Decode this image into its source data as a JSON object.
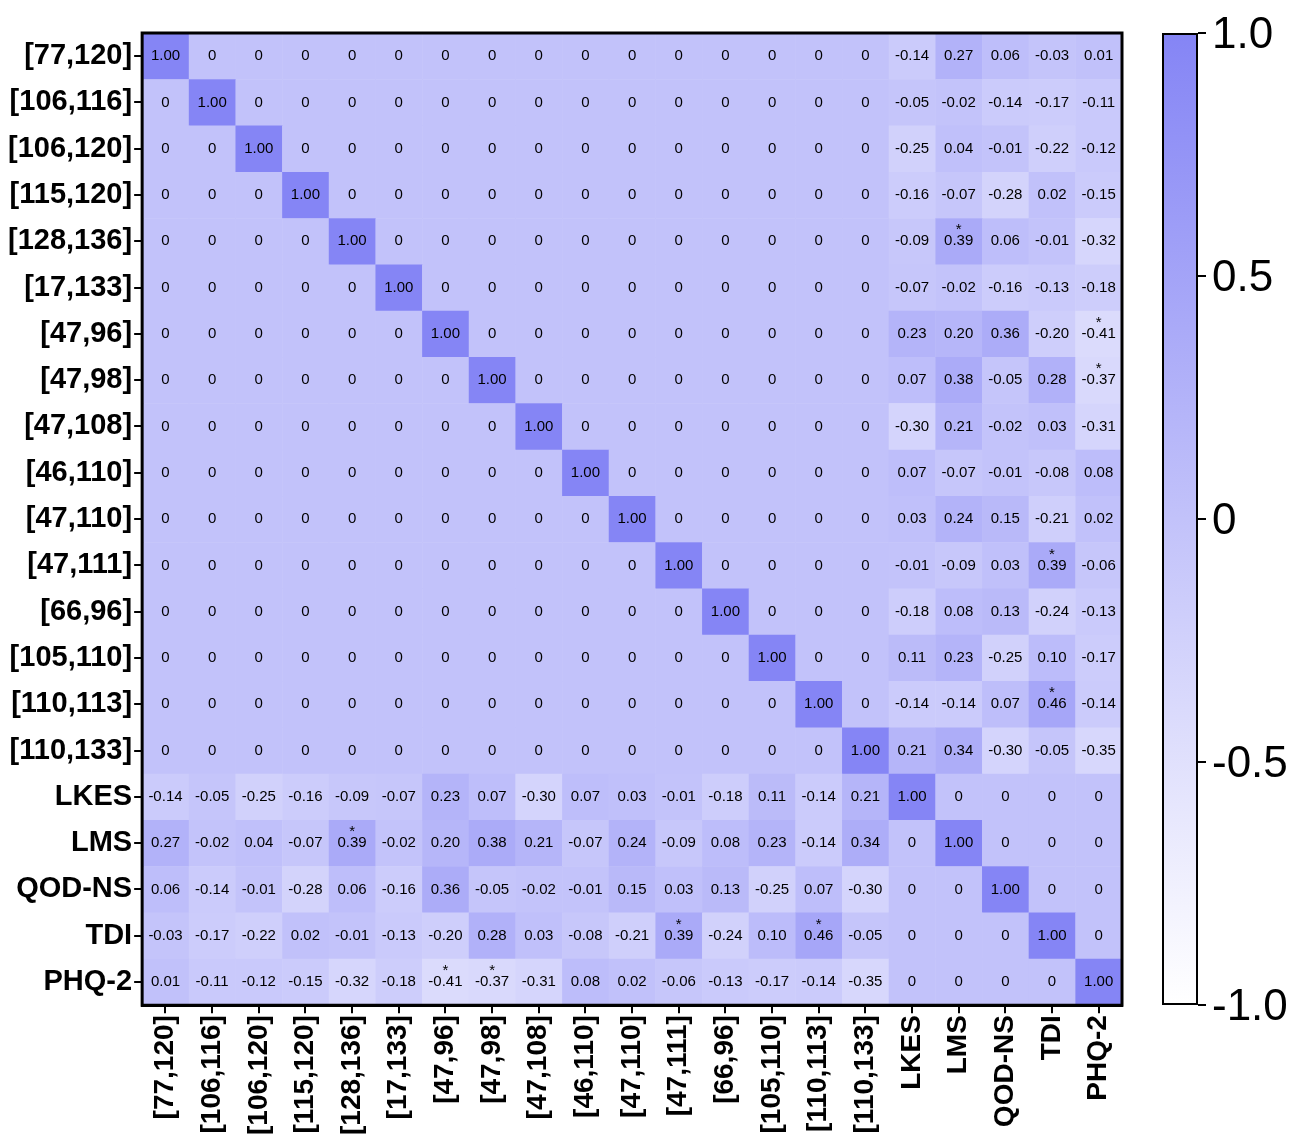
{
  "chart_data": {
    "type": "heatmap",
    "categories": [
      "[77,120]",
      "[106,116]",
      "[106,120]",
      "[115,120]",
      "[128,136]",
      "[17,133]",
      "[47,96]",
      "[47,98]",
      "[47,108]",
      "[46,110]",
      "[47,110]",
      "[47,111]",
      "[66,96]",
      "[105,110]",
      "[110,113]",
      "[110,133]",
      "LKES",
      "LMS",
      "QOD-NS",
      "TDI",
      "PHQ-2"
    ],
    "y_categories": [
      "[77,120]",
      "[106,116]",
      "[106,120]",
      "[115,120]",
      "[128,136]",
      "[17,133]",
      "[47,96]",
      "[47,98]",
      "[47,108]",
      "[46,110]",
      "[47,110]",
      "[47,111]",
      "[66,96]",
      "[105,110]",
      "[110,113]",
      "[110,133]",
      "LKES",
      "LMS",
      "QOD-NS",
      "TDI",
      "PHQ-2"
    ],
    "cells": [
      [
        1,
        0,
        0,
        0,
        0,
        0,
        0,
        0,
        0,
        0,
        0,
        0,
        0,
        0,
        0,
        0,
        -0.14,
        0.27,
        0.06,
        -0.03,
        0.01
      ],
      [
        0,
        1,
        0,
        0,
        0,
        0,
        0,
        0,
        0,
        0,
        0,
        0,
        0,
        0,
        0,
        0,
        -0.05,
        -0.02,
        -0.14,
        -0.17,
        -0.11
      ],
      [
        0,
        0,
        1,
        0,
        0,
        0,
        0,
        0,
        0,
        0,
        0,
        0,
        0,
        0,
        0,
        0,
        -0.25,
        0.04,
        -0.01,
        -0.22,
        -0.12
      ],
      [
        0,
        0,
        0,
        1,
        0,
        0,
        0,
        0,
        0,
        0,
        0,
        0,
        0,
        0,
        0,
        0,
        -0.16,
        -0.07,
        -0.28,
        0.02,
        -0.15
      ],
      [
        0,
        0,
        0,
        0,
        1,
        0,
        0,
        0,
        0,
        0,
        0,
        0,
        0,
        0,
        0,
        0,
        -0.09,
        0.39,
        0.06,
        -0.01,
        -0.32
      ],
      [
        0,
        0,
        0,
        0,
        0,
        1,
        0,
        0,
        0,
        0,
        0,
        0,
        0,
        0,
        0,
        0,
        -0.07,
        -0.02,
        -0.16,
        -0.13,
        -0.18
      ],
      [
        0,
        0,
        0,
        0,
        0,
        0,
        1,
        0,
        0,
        0,
        0,
        0,
        0,
        0,
        0,
        0,
        0.23,
        0.2,
        0.36,
        -0.2,
        -0.41
      ],
      [
        0,
        0,
        0,
        0,
        0,
        0,
        0,
        1,
        0,
        0,
        0,
        0,
        0,
        0,
        0,
        0,
        0.07,
        0.38,
        -0.05,
        0.28,
        -0.37
      ],
      [
        0,
        0,
        0,
        0,
        0,
        0,
        0,
        0,
        1,
        0,
        0,
        0,
        0,
        0,
        0,
        0,
        -0.3,
        0.21,
        -0.02,
        0.03,
        -0.31
      ],
      [
        0,
        0,
        0,
        0,
        0,
        0,
        0,
        0,
        0,
        1,
        0,
        0,
        0,
        0,
        0,
        0,
        0.07,
        -0.07,
        -0.01,
        -0.08,
        0.08
      ],
      [
        0,
        0,
        0,
        0,
        0,
        0,
        0,
        0,
        0,
        0,
        1,
        0,
        0,
        0,
        0,
        0,
        0.03,
        0.24,
        0.15,
        -0.21,
        0.02
      ],
      [
        0,
        0,
        0,
        0,
        0,
        0,
        0,
        0,
        0,
        0,
        0,
        1,
        0,
        0,
        0,
        0,
        -0.01,
        -0.09,
        0.03,
        0.39,
        -0.06
      ],
      [
        0,
        0,
        0,
        0,
        0,
        0,
        0,
        0,
        0,
        0,
        0,
        0,
        1,
        0,
        0,
        0,
        -0.18,
        0.08,
        0.13,
        -0.24,
        -0.13
      ],
      [
        0,
        0,
        0,
        0,
        0,
        0,
        0,
        0,
        0,
        0,
        0,
        0,
        0,
        1,
        0,
        0,
        0.11,
        0.23,
        -0.25,
        0.1,
        -0.17
      ],
      [
        0,
        0,
        0,
        0,
        0,
        0,
        0,
        0,
        0,
        0,
        0,
        0,
        0,
        0,
        1,
        0,
        -0.14,
        -0.14,
        0.07,
        0.46,
        -0.14
      ],
      [
        0,
        0,
        0,
        0,
        0,
        0,
        0,
        0,
        0,
        0,
        0,
        0,
        0,
        0,
        0,
        1,
        0.21,
        0.34,
        -0.3,
        -0.05,
        -0.35
      ],
      [
        -0.14,
        -0.05,
        -0.25,
        -0.16,
        -0.09,
        -0.07,
        0.23,
        0.07,
        -0.3,
        0.07,
        0.03,
        -0.01,
        -0.18,
        0.11,
        -0.14,
        0.21,
        1,
        0,
        0,
        0,
        0
      ],
      [
        0.27,
        -0.02,
        0.04,
        -0.07,
        0.39,
        -0.02,
        0.2,
        0.38,
        0.21,
        -0.07,
        0.24,
        -0.09,
        0.08,
        0.23,
        -0.14,
        0.34,
        0,
        1,
        0,
        0,
        0
      ],
      [
        0.06,
        -0.14,
        -0.01,
        -0.28,
        0.06,
        -0.16,
        0.36,
        -0.05,
        -0.02,
        -0.01,
        0.15,
        0.03,
        0.13,
        -0.25,
        0.07,
        -0.3,
        0,
        0,
        1,
        0,
        0
      ],
      [
        -0.03,
        -0.17,
        -0.22,
        0.02,
        -0.01,
        -0.13,
        -0.2,
        0.28,
        0.03,
        -0.08,
        -0.21,
        0.39,
        -0.24,
        0.1,
        0.46,
        -0.05,
        0,
        0,
        0,
        1,
        0
      ],
      [
        0.01,
        -0.11,
        -0.12,
        -0.15,
        -0.32,
        -0.18,
        -0.41,
        -0.37,
        -0.31,
        0.08,
        0.02,
        -0.06,
        -0.13,
        -0.17,
        -0.14,
        -0.35,
        0,
        0,
        0,
        0,
        1
      ]
    ],
    "cell_labels": [
      [
        "1.00",
        "0",
        "0",
        "0",
        "0",
        "0",
        "0",
        "0",
        "0",
        "0",
        "0",
        "0",
        "0",
        "0",
        "0",
        "0",
        "-0.14",
        "0.27",
        "0.06",
        "-0.03",
        "0.01"
      ],
      [
        "0",
        "1.00",
        "0",
        "0",
        "0",
        "0",
        "0",
        "0",
        "0",
        "0",
        "0",
        "0",
        "0",
        "0",
        "0",
        "0",
        "-0.05",
        "-0.02",
        "-0.14",
        "-0.17",
        "-0.11"
      ],
      [
        "0",
        "0",
        "1.00",
        "0",
        "0",
        "0",
        "0",
        "0",
        "0",
        "0",
        "0",
        "0",
        "0",
        "0",
        "0",
        "0",
        "-0.25",
        "0.04",
        "-0.01",
        "-0.22",
        "-0.12"
      ],
      [
        "0",
        "0",
        "0",
        "1.00",
        "0",
        "0",
        "0",
        "0",
        "0",
        "0",
        "0",
        "0",
        "0",
        "0",
        "0",
        "0",
        "-0.16",
        "-0.07",
        "-0.28",
        "0.02",
        "-0.15"
      ],
      [
        "0",
        "0",
        "0",
        "0",
        "1.00",
        "0",
        "0",
        "0",
        "0",
        "0",
        "0",
        "0",
        "0",
        "0",
        "0",
        "0",
        "-0.09",
        "*\n0.39",
        "0.06",
        "-0.01",
        "-0.32"
      ],
      [
        "0",
        "0",
        "0",
        "0",
        "0",
        "1.00",
        "0",
        "0",
        "0",
        "0",
        "0",
        "0",
        "0",
        "0",
        "0",
        "0",
        "-0.07",
        "-0.02",
        "-0.16",
        "-0.13",
        "-0.18"
      ],
      [
        "0",
        "0",
        "0",
        "0",
        "0",
        "0",
        "1.00",
        "0",
        "0",
        "0",
        "0",
        "0",
        "0",
        "0",
        "0",
        "0",
        "0.23",
        "0.20",
        "0.36",
        "-0.20",
        "*\n-0.41"
      ],
      [
        "0",
        "0",
        "0",
        "0",
        "0",
        "0",
        "0",
        "1.00",
        "0",
        "0",
        "0",
        "0",
        "0",
        "0",
        "0",
        "0",
        "0.07",
        "0.38",
        "-0.05",
        "0.28",
        "*\n-0.37"
      ],
      [
        "0",
        "0",
        "0",
        "0",
        "0",
        "0",
        "0",
        "0",
        "1.00",
        "0",
        "0",
        "0",
        "0",
        "0",
        "0",
        "0",
        "-0.30",
        "0.21",
        "-0.02",
        "0.03",
        "-0.31"
      ],
      [
        "0",
        "0",
        "0",
        "0",
        "0",
        "0",
        "0",
        "0",
        "0",
        "1.00",
        "0",
        "0",
        "0",
        "0",
        "0",
        "0",
        "0.07",
        "-0.07",
        "-0.01",
        "-0.08",
        "0.08"
      ],
      [
        "0",
        "0",
        "0",
        "0",
        "0",
        "0",
        "0",
        "0",
        "0",
        "0",
        "1.00",
        "0",
        "0",
        "0",
        "0",
        "0",
        "0.03",
        "0.24",
        "0.15",
        "-0.21",
        "0.02"
      ],
      [
        "0",
        "0",
        "0",
        "0",
        "0",
        "0",
        "0",
        "0",
        "0",
        "0",
        "0",
        "1.00",
        "0",
        "0",
        "0",
        "0",
        "-0.01",
        "-0.09",
        "0.03",
        "*\n0.39",
        "-0.06"
      ],
      [
        "0",
        "0",
        "0",
        "0",
        "0",
        "0",
        "0",
        "0",
        "0",
        "0",
        "0",
        "0",
        "1.00",
        "0",
        "0",
        "0",
        "-0.18",
        "0.08",
        "0.13",
        "-0.24",
        "-0.13"
      ],
      [
        "0",
        "0",
        "0",
        "0",
        "0",
        "0",
        "0",
        "0",
        "0",
        "0",
        "0",
        "0",
        "0",
        "1.00",
        "0",
        "0",
        "0.11",
        "0.23",
        "-0.25",
        "0.10",
        "-0.17"
      ],
      [
        "0",
        "0",
        "0",
        "0",
        "0",
        "0",
        "0",
        "0",
        "0",
        "0",
        "0",
        "0",
        "0",
        "0",
        "1.00",
        "0",
        "-0.14",
        "-0.14",
        "0.07",
        "*\n0.46",
        "-0.14"
      ],
      [
        "0",
        "0",
        "0",
        "0",
        "0",
        "0",
        "0",
        "0",
        "0",
        "0",
        "0",
        "0",
        "0",
        "0",
        "0",
        "1.00",
        "0.21",
        "0.34",
        "-0.30",
        "-0.05",
        "-0.35"
      ],
      [
        "-0.14",
        "-0.05",
        "-0.25",
        "-0.16",
        "-0.09",
        "-0.07",
        "0.23",
        "0.07",
        "-0.30",
        "0.07",
        "0.03",
        "-0.01",
        "-0.18",
        "0.11",
        "-0.14",
        "0.21",
        "1.00",
        "0",
        "0",
        "0",
        "0"
      ],
      [
        "0.27",
        "-0.02",
        "0.04",
        "-0.07",
        "*\n0.39",
        "-0.02",
        "0.20",
        "0.38",
        "0.21",
        "-0.07",
        "0.24",
        "-0.09",
        "0.08",
        "0.23",
        "-0.14",
        "0.34",
        "0",
        "1.00",
        "0",
        "0",
        "0"
      ],
      [
        "0.06",
        "-0.14",
        "-0.01",
        "-0.28",
        "0.06",
        "-0.16",
        "0.36",
        "-0.05",
        "-0.02",
        "-0.01",
        "0.15",
        "0.03",
        "0.13",
        "-0.25",
        "0.07",
        "-0.30",
        "0",
        "0",
        "1.00",
        "0",
        "0"
      ],
      [
        "-0.03",
        "-0.17",
        "-0.22",
        "0.02",
        "-0.01",
        "-0.13",
        "-0.20",
        "0.28",
        "0.03",
        "-0.08",
        "-0.21",
        "*\n0.39",
        "-0.24",
        "0.10",
        "*\n0.46",
        "-0.05",
        "0",
        "0",
        "0",
        "1.00",
        "0"
      ],
      [
        "0.01",
        "-0.11",
        "-0.12",
        "-0.15",
        "-0.32",
        "-0.18",
        "*\n-0.41",
        "*\n-0.37",
        "-0.31",
        "0.08",
        "0.02",
        "-0.06",
        "-0.13",
        "-0.17",
        "-0.14",
        "-0.35",
        "0",
        "0",
        "0",
        "0",
        "1.00"
      ]
    ],
    "colors": [
      "#ffffff",
      "#8585f5"
    ],
    "clim": [
      -1,
      1
    ],
    "cticks": [
      {
        "value": 1,
        "label": "1.0"
      },
      {
        "value": 0.5,
        "label": "0.5"
      },
      0,
      {
        "value": -0.5,
        "label": "-0.5"
      },
      {
        "value": -1,
        "label": "-1.0"
      }
    ]
  }
}
